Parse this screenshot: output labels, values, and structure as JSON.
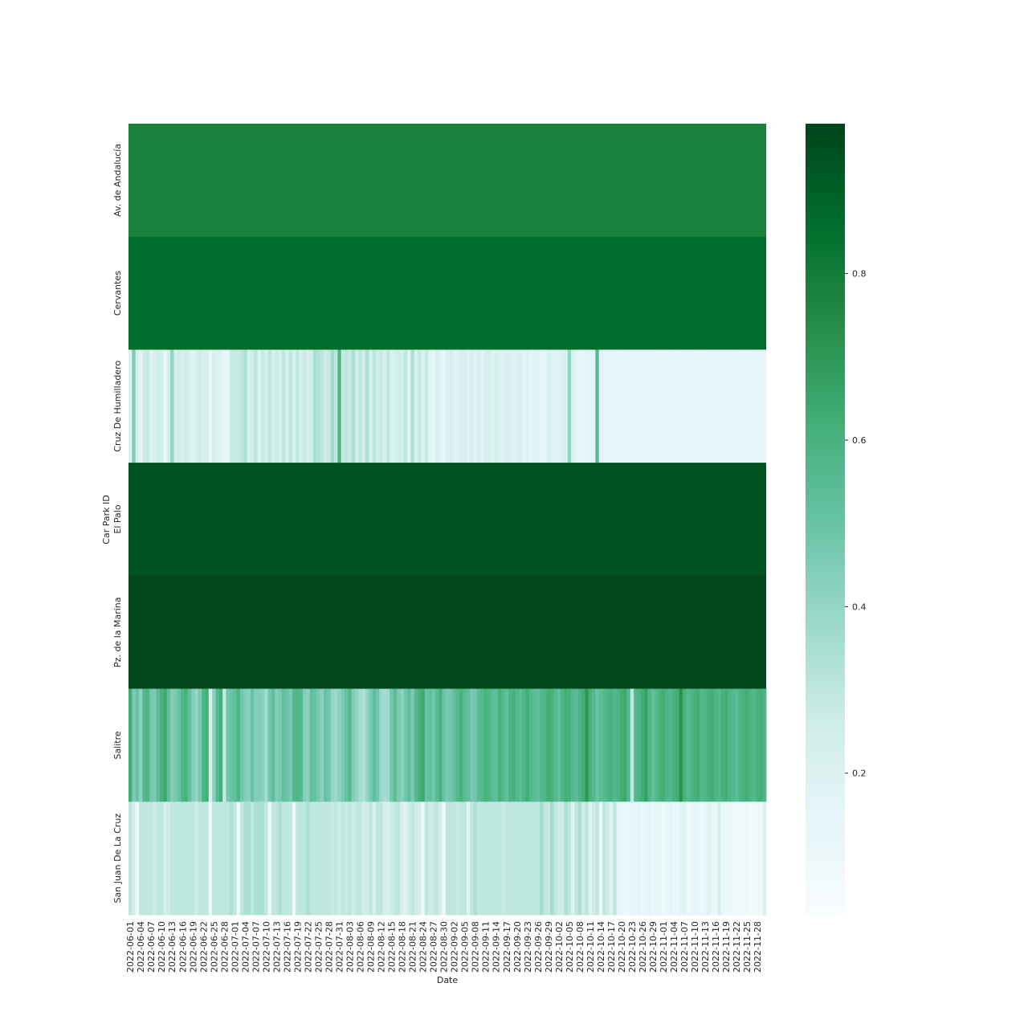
{
  "chart_data": {
    "type": "heatmap",
    "title": "",
    "xlabel": "Date",
    "ylabel": "Car Park ID",
    "x_start": "2022-06-01",
    "x_end": "2022-11-30",
    "x_tick_step_days": 3,
    "x_tick_labels": [
      "2022-06-01",
      "2022-06-04",
      "2022-06-07",
      "2022-06-10",
      "2022-06-13",
      "2022-06-16",
      "2022-06-19",
      "2022-06-22",
      "2022-06-25",
      "2022-06-28",
      "2022-07-01",
      "2022-07-04",
      "2022-07-07",
      "2022-07-10",
      "2022-07-13",
      "2022-07-16",
      "2022-07-19",
      "2022-07-22",
      "2022-07-25",
      "2022-07-28",
      "2022-07-31",
      "2022-08-03",
      "2022-08-06",
      "2022-08-09",
      "2022-08-12",
      "2022-08-15",
      "2022-08-18",
      "2022-08-21",
      "2022-08-24",
      "2022-08-27",
      "2022-08-30",
      "2022-09-02",
      "2022-09-05",
      "2022-09-08",
      "2022-09-11",
      "2022-09-14",
      "2022-09-17",
      "2022-09-20",
      "2022-09-23",
      "2022-09-26",
      "2022-09-29",
      "2022-10-02",
      "2022-10-05",
      "2022-10-08",
      "2022-10-11",
      "2022-10-14",
      "2022-10-17",
      "2022-10-20",
      "2022-10-23",
      "2022-10-26",
      "2022-10-29",
      "2022-11-01",
      "2022-11-04",
      "2022-11-07",
      "2022-11-10",
      "2022-11-13",
      "2022-11-16",
      "2022-11-19",
      "2022-11-22",
      "2022-11-25",
      "2022-11-28"
    ],
    "rows": [
      {
        "name": "Av. de Andalucía",
        "values": [
          0.78
        ]
      },
      {
        "name": "Cervantes",
        "values": [
          0.86
        ]
      },
      {
        "name": "Cruz De Humilladero",
        "values": [
          0.2,
          0.45,
          0.22,
          0.16,
          0.26,
          0.28,
          0.18,
          0.22,
          0.26,
          0.22,
          0.12,
          0.24,
          0.4,
          0.22,
          0.25,
          0.22,
          0.25,
          0.22,
          0.18,
          0.22,
          0.25,
          0.22,
          0.23,
          0.12,
          0.23,
          0.2,
          0.16,
          0.12,
          0.12,
          0.28,
          0.28,
          0.28,
          0.3,
          0.34,
          0.22,
          0.25,
          0.3,
          0.18,
          0.28,
          0.22,
          0.3,
          0.22,
          0.27,
          0.22,
          0.3,
          0.22,
          0.3,
          0.23,
          0.3,
          0.22,
          0.27,
          0.22,
          0.24,
          0.35,
          0.32,
          0.3,
          0.25,
          0.28,
          0.36,
          0.3,
          0.58,
          0.28,
          0.3,
          0.28,
          0.34,
          0.25,
          0.3,
          0.24,
          0.34,
          0.22,
          0.3,
          0.24,
          0.28,
          0.22,
          0.3,
          0.2,
          0.22,
          0.26,
          0.22,
          0.3,
          0.18,
          0.34,
          0.22,
          0.28,
          0.2,
          0.28,
          0.18,
          0.14,
          0.2,
          0.18,
          0.12,
          0.2,
          0.22,
          0.17,
          0.18,
          0.2,
          0.22,
          0.18,
          0.2,
          0.17,
          0.21,
          0.17,
          0.22,
          0.23,
          0.18,
          0.22,
          0.2,
          0.18,
          0.2,
          0.2,
          0.18,
          0.2,
          0.2,
          0.17,
          0.18,
          0.15,
          0.17,
          0.18,
          0.14,
          0.15,
          0.2,
          0.18,
          0.17,
          0.18,
          0.19,
          0.2,
          0.4,
          0.22,
          0.16,
          0.15,
          0.15,
          0.16,
          0.16,
          0.16,
          0.55,
          0.15,
          0.15,
          0.15,
          0.15,
          0.15,
          0.15,
          0.15,
          0.15,
          0.15,
          0.15,
          0.15,
          0.15,
          0.15,
          0.15,
          0.15,
          0.15,
          0.15,
          0.15,
          0.15,
          0.15,
          0.15,
          0.15,
          0.15,
          0.15,
          0.15,
          0.15,
          0.15,
          0.15,
          0.15,
          0.15,
          0.15,
          0.15,
          0.15,
          0.15,
          0.15,
          0.15,
          0.15,
          0.15,
          0.15,
          0.15,
          0.15,
          0.15,
          0.15,
          0.15,
          0.15,
          0.15,
          0.15,
          0.15,
          0.15,
          0.15,
          0.15,
          0.15
        ]
      },
      {
        "name": "El Palo",
        "values": [
          0.94
        ]
      },
      {
        "name": "Pz. de la Marina",
        "values": [
          0.97
        ]
      },
      {
        "name": "Salitre",
        "values": [
          0.62,
          0.45,
          0.5,
          0.42,
          0.56,
          0.58,
          0.48,
          0.46,
          0.54,
          0.6,
          0.64,
          0.52,
          0.44,
          0.46,
          0.5,
          0.58,
          0.6,
          0.52,
          0.44,
          0.4,
          0.46,
          0.58,
          0.62,
          0.22,
          0.42,
          0.56,
          0.62,
          0.28,
          0.48,
          0.5,
          0.52,
          0.58,
          0.48,
          0.44,
          0.42,
          0.5,
          0.44,
          0.44,
          0.42,
          0.36,
          0.48,
          0.52,
          0.44,
          0.46,
          0.52,
          0.5,
          0.46,
          0.56,
          0.58,
          0.56,
          0.44,
          0.42,
          0.52,
          0.5,
          0.46,
          0.42,
          0.5,
          0.48,
          0.4,
          0.38,
          0.42,
          0.46,
          0.5,
          0.56,
          0.44,
          0.4,
          0.36,
          0.34,
          0.4,
          0.46,
          0.52,
          0.48,
          0.38,
          0.36,
          0.38,
          0.48,
          0.54,
          0.46,
          0.42,
          0.48,
          0.52,
          0.46,
          0.56,
          0.6,
          0.64,
          0.5,
          0.52,
          0.48,
          0.54,
          0.6,
          0.5,
          0.46,
          0.48,
          0.52,
          0.56,
          0.6,
          0.54,
          0.52,
          0.46,
          0.48,
          0.54,
          0.56,
          0.6,
          0.58,
          0.54,
          0.52,
          0.6,
          0.56,
          0.52,
          0.58,
          0.6,
          0.56,
          0.54,
          0.58,
          0.62,
          0.56,
          0.54,
          0.52,
          0.56,
          0.58,
          0.62,
          0.6,
          0.56,
          0.52,
          0.58,
          0.62,
          0.6,
          0.56,
          0.54,
          0.58,
          0.62,
          0.7,
          0.6,
          0.56,
          0.5,
          0.54,
          0.56,
          0.58,
          0.6,
          0.56,
          0.58,
          0.62,
          0.64,
          0.56,
          0.3,
          0.56,
          0.58,
          0.62,
          0.66,
          0.58,
          0.52,
          0.56,
          0.6,
          0.62,
          0.58,
          0.56,
          0.6,
          0.62,
          0.72,
          0.6,
          0.56,
          0.58,
          0.6,
          0.62,
          0.56,
          0.58,
          0.6,
          0.62,
          0.58,
          0.56,
          0.6,
          0.62,
          0.58,
          0.56,
          0.54,
          0.58,
          0.6,
          0.62,
          0.58,
          0.56,
          0.6,
          0.62,
          0.58,
          0.54,
          0.56,
          0.6
        ]
      },
      {
        "name": "San Juan De La Cruz",
        "values": [
          0.3,
          0.24,
          0.1,
          0.3,
          0.3,
          0.3,
          0.3,
          0.26,
          0.3,
          0.3,
          0.24,
          0.26,
          0.3,
          0.3,
          0.3,
          0.3,
          0.3,
          0.3,
          0.3,
          0.26,
          0.3,
          0.3,
          0.3,
          0.1,
          0.3,
          0.3,
          0.3,
          0.3,
          0.3,
          0.34,
          0.3,
          0.1,
          0.3,
          0.34,
          0.34,
          0.3,
          0.34,
          0.34,
          0.34,
          0.3,
          0.1,
          0.3,
          0.3,
          0.34,
          0.3,
          0.3,
          0.3,
          0.1,
          0.3,
          0.3,
          0.3,
          0.34,
          0.3,
          0.3,
          0.3,
          0.3,
          0.3,
          0.3,
          0.28,
          0.3,
          0.26,
          0.3,
          0.28,
          0.3,
          0.26,
          0.3,
          0.3,
          0.24,
          0.26,
          0.3,
          0.22,
          0.3,
          0.3,
          0.22,
          0.22,
          0.26,
          0.3,
          0.3,
          0.22,
          0.18,
          0.26,
          0.3,
          0.26,
          0.24,
          0.1,
          0.3,
          0.26,
          0.28,
          0.3,
          0.24,
          0.1,
          0.3,
          0.3,
          0.3,
          0.28,
          0.3,
          0.3,
          0.18,
          0.3,
          0.34,
          0.3,
          0.3,
          0.3,
          0.3,
          0.3,
          0.3,
          0.3,
          0.28,
          0.3,
          0.3,
          0.3,
          0.3,
          0.3,
          0.3,
          0.3,
          0.3,
          0.3,
          0.3,
          0.36,
          0.3,
          0.28,
          0.36,
          0.3,
          0.26,
          0.26,
          0.34,
          0.3,
          0.18,
          0.3,
          0.34,
          0.26,
          0.3,
          0.18,
          0.26,
          0.3,
          0.1,
          0.3,
          0.26,
          0.18,
          0.3,
          0.16,
          0.12,
          0.1,
          0.1,
          0.12,
          0.14,
          0.16,
          0.1,
          0.12,
          0.16,
          0.1,
          0.12,
          0.14,
          0.1,
          0.12,
          0.16,
          0.12,
          0.1,
          0.16,
          0.18,
          0.1,
          0.12,
          0.16,
          0.12,
          0.1,
          0.14,
          0.18,
          0.12,
          0.1,
          0.22,
          0.12,
          0.1,
          0.1,
          0.08,
          0.06,
          0.08,
          0.1,
          0.08,
          0.06,
          0.08,
          0.1,
          0.08,
          0.2,
          0.08,
          0.06,
          0.08,
          0.1,
          0.08,
          0.14,
          0.06,
          0.08,
          0.1,
          0.2
        ]
      }
    ],
    "colormap": "BuGn",
    "vmin": 0.03,
    "vmax": 0.98,
    "colorbar_ticks": [
      0.2,
      0.4,
      0.6,
      0.8
    ],
    "colorbar_tick_labels": [
      "0.2",
      "0.4",
      "0.6",
      "0.8"
    ],
    "grid": false,
    "legend": "colorbar-right"
  }
}
